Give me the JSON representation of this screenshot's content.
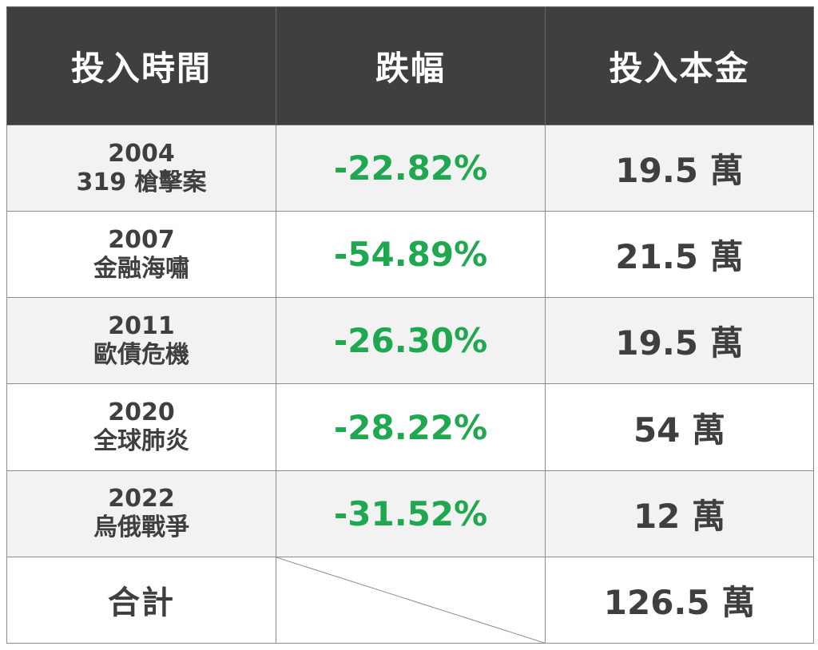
{
  "headers": {
    "time": "投入時間",
    "drop": "跌幅",
    "capital": "投入本金"
  },
  "rows": [
    {
      "year": "2004",
      "event": "319 槍擊案",
      "drop": "-22.82%",
      "capital": "19.5 萬"
    },
    {
      "year": "2007",
      "event": "金融海嘯",
      "drop": "-54.89%",
      "capital": "21.5 萬"
    },
    {
      "year": "2011",
      "event": "歐債危機",
      "drop": "-26.30%",
      "capital": "19.5 萬"
    },
    {
      "year": "2020",
      "event": "全球肺炎",
      "drop": "-28.22%",
      "capital": "54 萬"
    },
    {
      "year": "2022",
      "event": "烏俄戰爭",
      "drop": "-31.52%",
      "capital": "12 萬"
    }
  ],
  "total": {
    "label": "合計",
    "capital": "126.5 萬"
  },
  "colors": {
    "header_bg": "#3f3f3f",
    "drop_text": "#1fa84f",
    "body_text": "#3f3f3f",
    "row_alt_bg": "#f2f2f2"
  }
}
